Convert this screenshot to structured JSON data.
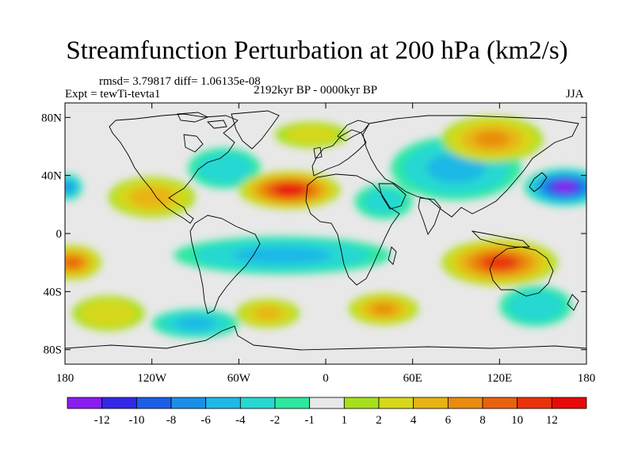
{
  "title": "Streamfunction Perturbation at 200 hPa (km2/s)",
  "stats_line": "rmsd= 3.79817 diff= 1.06135e-08",
  "experiment_label": "Expt = tewTi-tevta1",
  "period_label": "2192kyr BP - 0000kyr BP",
  "season_label": "JJA",
  "lat_ticks": [
    {
      "label": "80N",
      "lat": 80
    },
    {
      "label": "40N",
      "lat": 40
    },
    {
      "label": "0",
      "lat": 0
    },
    {
      "label": "40S",
      "lat": -40
    },
    {
      "label": "80S",
      "lat": -80
    }
  ],
  "lon_ticks": [
    {
      "label": "180",
      "lon": -180
    },
    {
      "label": "120W",
      "lon": -120
    },
    {
      "label": "60W",
      "lon": -60
    },
    {
      "label": "0",
      "lon": 0
    },
    {
      "label": "60E",
      "lon": 60
    },
    {
      "label": "120E",
      "lon": 120
    },
    {
      "label": "180",
      "lon": 180
    }
  ],
  "colorbar": {
    "colors": [
      "#8a1cf2",
      "#3428e8",
      "#1c5ee6",
      "#1b8fe6",
      "#1fb8e6",
      "#27d8d2",
      "#2ee8a0",
      "#e8e8e8",
      "#a6e01c",
      "#d6d81a",
      "#e8b414",
      "#e88c10",
      "#e8620e",
      "#e8320c",
      "#e80808"
    ],
    "labels": [
      "-12",
      "-10",
      "-8",
      "-6",
      "-4",
      "-2",
      "-1",
      "1",
      "2",
      "4",
      "6",
      "8",
      "10",
      "12"
    ]
  },
  "anomalies": [
    {
      "lon": 165,
      "lat": 32,
      "rx": 28,
      "ry": 13,
      "value": -12
    },
    {
      "lon": -178,
      "lat": 32,
      "rx": 10,
      "ry": 9,
      "value": -6
    },
    {
      "lon": 90,
      "lat": 45,
      "rx": 45,
      "ry": 22,
      "value": -4
    },
    {
      "lon": -30,
      "lat": -15,
      "rx": 75,
      "ry": 13,
      "value": -4
    },
    {
      "lon": -90,
      "lat": -62,
      "rx": 30,
      "ry": 10,
      "value": -4
    },
    {
      "lon": 145,
      "lat": -50,
      "rx": 25,
      "ry": 14,
      "value": -3
    },
    {
      "lon": -70,
      "lat": 45,
      "rx": 25,
      "ry": 14,
      "value": -3
    },
    {
      "lon": 40,
      "lat": 22,
      "rx": 20,
      "ry": 12,
      "value": -2
    },
    {
      "lon": -25,
      "lat": 30,
      "rx": 35,
      "ry": 13,
      "value": 12
    },
    {
      "lon": 120,
      "lat": -20,
      "rx": 40,
      "ry": 16,
      "value": 10
    },
    {
      "lon": -175,
      "lat": -20,
      "rx": 20,
      "ry": 12,
      "value": 8
    },
    {
      "lon": 115,
      "lat": 65,
      "rx": 35,
      "ry": 16,
      "value": 6
    },
    {
      "lon": 40,
      "lat": -52,
      "rx": 24,
      "ry": 11,
      "value": 6
    },
    {
      "lon": -120,
      "lat": 25,
      "rx": 30,
      "ry": 14,
      "value": 5
    },
    {
      "lon": -40,
      "lat": -55,
      "rx": 22,
      "ry": 10,
      "value": 4
    },
    {
      "lon": -150,
      "lat": -55,
      "rx": 25,
      "ry": 12,
      "value": 3
    },
    {
      "lon": -10,
      "lat": 68,
      "rx": 25,
      "ry": 9,
      "value": 2
    }
  ]
}
